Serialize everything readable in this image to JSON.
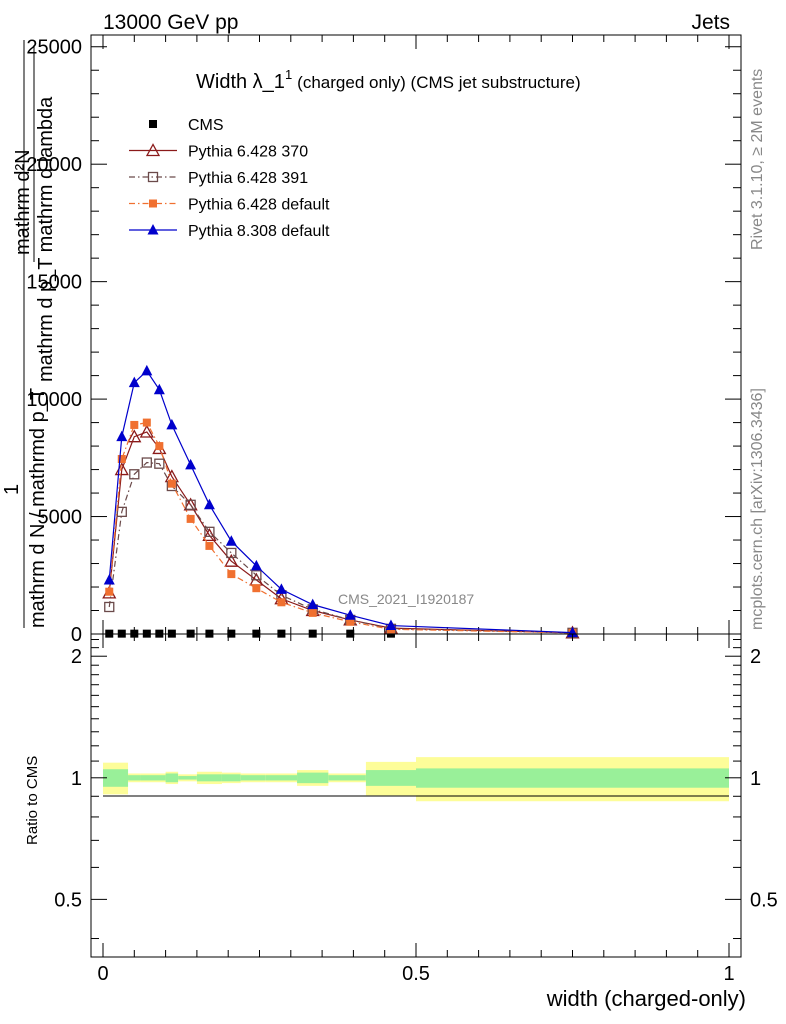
{
  "header": {
    "left": "13000 GeV pp",
    "right": "Jets"
  },
  "side_labels": {
    "rivet": "Rivet 3.1.10, ≥ 2M events",
    "site": "mcplots.cern.ch [arXiv:1306.3436]"
  },
  "colors": {
    "cms": "#000000",
    "py6_370": "#8b1a1a",
    "py6_391": "#6b4a4a",
    "py6_default": "#f07030",
    "py8_default": "#0000cc",
    "band_stat": "#99f099",
    "band_total": "#fdfd99"
  },
  "chart_data": [
    {
      "type": "line",
      "title": "Width λ_1",
      "title_sup": "1",
      "title_suffix": "(charged only) (CMS jet substructure)",
      "watermark": "CMS_2021_I1920187",
      "ylabel_frac_top": "mathrm d²N",
      "ylabel_frac_bottom": "mathrm d p_T mathrm d lambda",
      "ylabel_one": "1",
      "ylabel_outer": "mathrm d N / mathrmd p_T",
      "ylabel_outer_sub": "T",
      "xlim": [
        0,
        1
      ],
      "ylim": [
        0,
        25500
      ],
      "yticks": [
        0,
        5000,
        10000,
        15000,
        20000,
        25000
      ],
      "ytick_labels": [
        "0",
        "5000",
        "10000",
        "15000",
        "20000",
        "25000"
      ],
      "legend_position": "top-left",
      "series": [
        {
          "name": "CMS",
          "marker": "filled-square",
          "line": "none",
          "x": [
            0.01,
            0.03,
            0.05,
            0.07,
            0.09,
            0.11,
            0.14,
            0.17,
            0.205,
            0.245,
            0.285,
            0.335,
            0.395,
            0.46
          ],
          "y": [
            15,
            15,
            15,
            15,
            15,
            15,
            15,
            15,
            15,
            15,
            15,
            15,
            15,
            15
          ]
        },
        {
          "name": "Pythia 6.428 370",
          "marker": "open-triangle",
          "line": "solid",
          "x": [
            0.01,
            0.03,
            0.05,
            0.07,
            0.09,
            0.11,
            0.14,
            0.17,
            0.205,
            0.245,
            0.285,
            0.335,
            0.395,
            0.46,
            0.75
          ],
          "y": [
            1750,
            7000,
            8400,
            8600,
            7900,
            6700,
            5500,
            4200,
            3100,
            2300,
            1500,
            1000,
            600,
            250,
            50
          ]
        },
        {
          "name": "Pythia 6.428 391",
          "marker": "open-square",
          "line": "dashdot",
          "x": [
            0.01,
            0.03,
            0.05,
            0.07,
            0.09,
            0.11,
            0.14,
            0.17,
            0.205,
            0.245,
            0.285,
            0.335,
            0.395,
            0.46,
            0.75
          ],
          "y": [
            1150,
            5200,
            6800,
            7300,
            7250,
            6300,
            5500,
            4350,
            3450,
            2500,
            1650,
            1050,
            600,
            220,
            50
          ]
        },
        {
          "name": "Pythia 6.428 default",
          "marker": "filled-square",
          "line": "dashdot",
          "x": [
            0.01,
            0.03,
            0.05,
            0.07,
            0.09,
            0.11,
            0.14,
            0.17,
            0.205,
            0.245,
            0.285,
            0.335,
            0.395,
            0.46,
            0.75
          ],
          "y": [
            1800,
            7450,
            8900,
            9000,
            8000,
            6400,
            4900,
            3750,
            2550,
            1950,
            1350,
            900,
            520,
            200,
            50
          ]
        },
        {
          "name": "Pythia 8.308 default",
          "marker": "filled-triangle",
          "line": "solid",
          "x": [
            0.01,
            0.03,
            0.05,
            0.07,
            0.09,
            0.11,
            0.14,
            0.17,
            0.205,
            0.245,
            0.285,
            0.335,
            0.395,
            0.46,
            0.75
          ],
          "y": [
            2300,
            8400,
            10700,
            11200,
            10400,
            8900,
            7200,
            5500,
            3950,
            2900,
            1900,
            1250,
            800,
            360,
            60
          ]
        }
      ]
    },
    {
      "type": "area",
      "ylabel": "Ratio to CMS",
      "xlabel": "width (charged-only)",
      "xlim": [
        0,
        1
      ],
      "ylim": [
        0.36,
        2.27
      ],
      "xticks": [
        0,
        0.5,
        1
      ],
      "xtick_labels": [
        "0",
        "0.5",
        "1"
      ],
      "yticks": [
        0.5,
        1,
        2
      ],
      "ytick_labels": [
        "0.5",
        "1",
        "2"
      ],
      "bins": [
        {
          "x0": 0.0,
          "x1": 0.04,
          "stat": [
            0.95,
            1.05
          ],
          "total": [
            0.91,
            1.09
          ]
        },
        {
          "x0": 0.04,
          "x1": 0.06,
          "stat": [
            0.985,
            1.015
          ],
          "total": [
            0.975,
            1.025
          ]
        },
        {
          "x0": 0.06,
          "x1": 0.1,
          "stat": [
            0.985,
            1.015
          ],
          "total": [
            0.975,
            1.025
          ]
        },
        {
          "x0": 0.1,
          "x1": 0.12,
          "stat": [
            0.975,
            1.025
          ],
          "total": [
            0.965,
            1.035
          ]
        },
        {
          "x0": 0.12,
          "x1": 0.15,
          "stat": [
            0.99,
            1.01
          ],
          "total": [
            0.98,
            1.02
          ]
        },
        {
          "x0": 0.15,
          "x1": 0.19,
          "stat": [
            0.98,
            1.02
          ],
          "total": [
            0.965,
            1.035
          ]
        },
        {
          "x0": 0.19,
          "x1": 0.22,
          "stat": [
            0.98,
            1.02
          ],
          "total": [
            0.97,
            1.03
          ]
        },
        {
          "x0": 0.22,
          "x1": 0.26,
          "stat": [
            0.985,
            1.015
          ],
          "total": [
            0.975,
            1.025
          ]
        },
        {
          "x0": 0.26,
          "x1": 0.31,
          "stat": [
            0.985,
            1.015
          ],
          "total": [
            0.975,
            1.025
          ]
        },
        {
          "x0": 0.31,
          "x1": 0.36,
          "stat": [
            0.97,
            1.03
          ],
          "total": [
            0.955,
            1.045
          ]
        },
        {
          "x0": 0.36,
          "x1": 0.42,
          "stat": [
            0.985,
            1.015
          ],
          "total": [
            0.975,
            1.025
          ]
        },
        {
          "x0": 0.42,
          "x1": 0.5,
          "stat": [
            0.955,
            1.045
          ],
          "total": [
            0.905,
            1.095
          ]
        },
        {
          "x0": 0.5,
          "x1": 1.0,
          "stat": [
            0.945,
            1.055
          ],
          "total": [
            0.875,
            1.125
          ]
        }
      ]
    }
  ]
}
